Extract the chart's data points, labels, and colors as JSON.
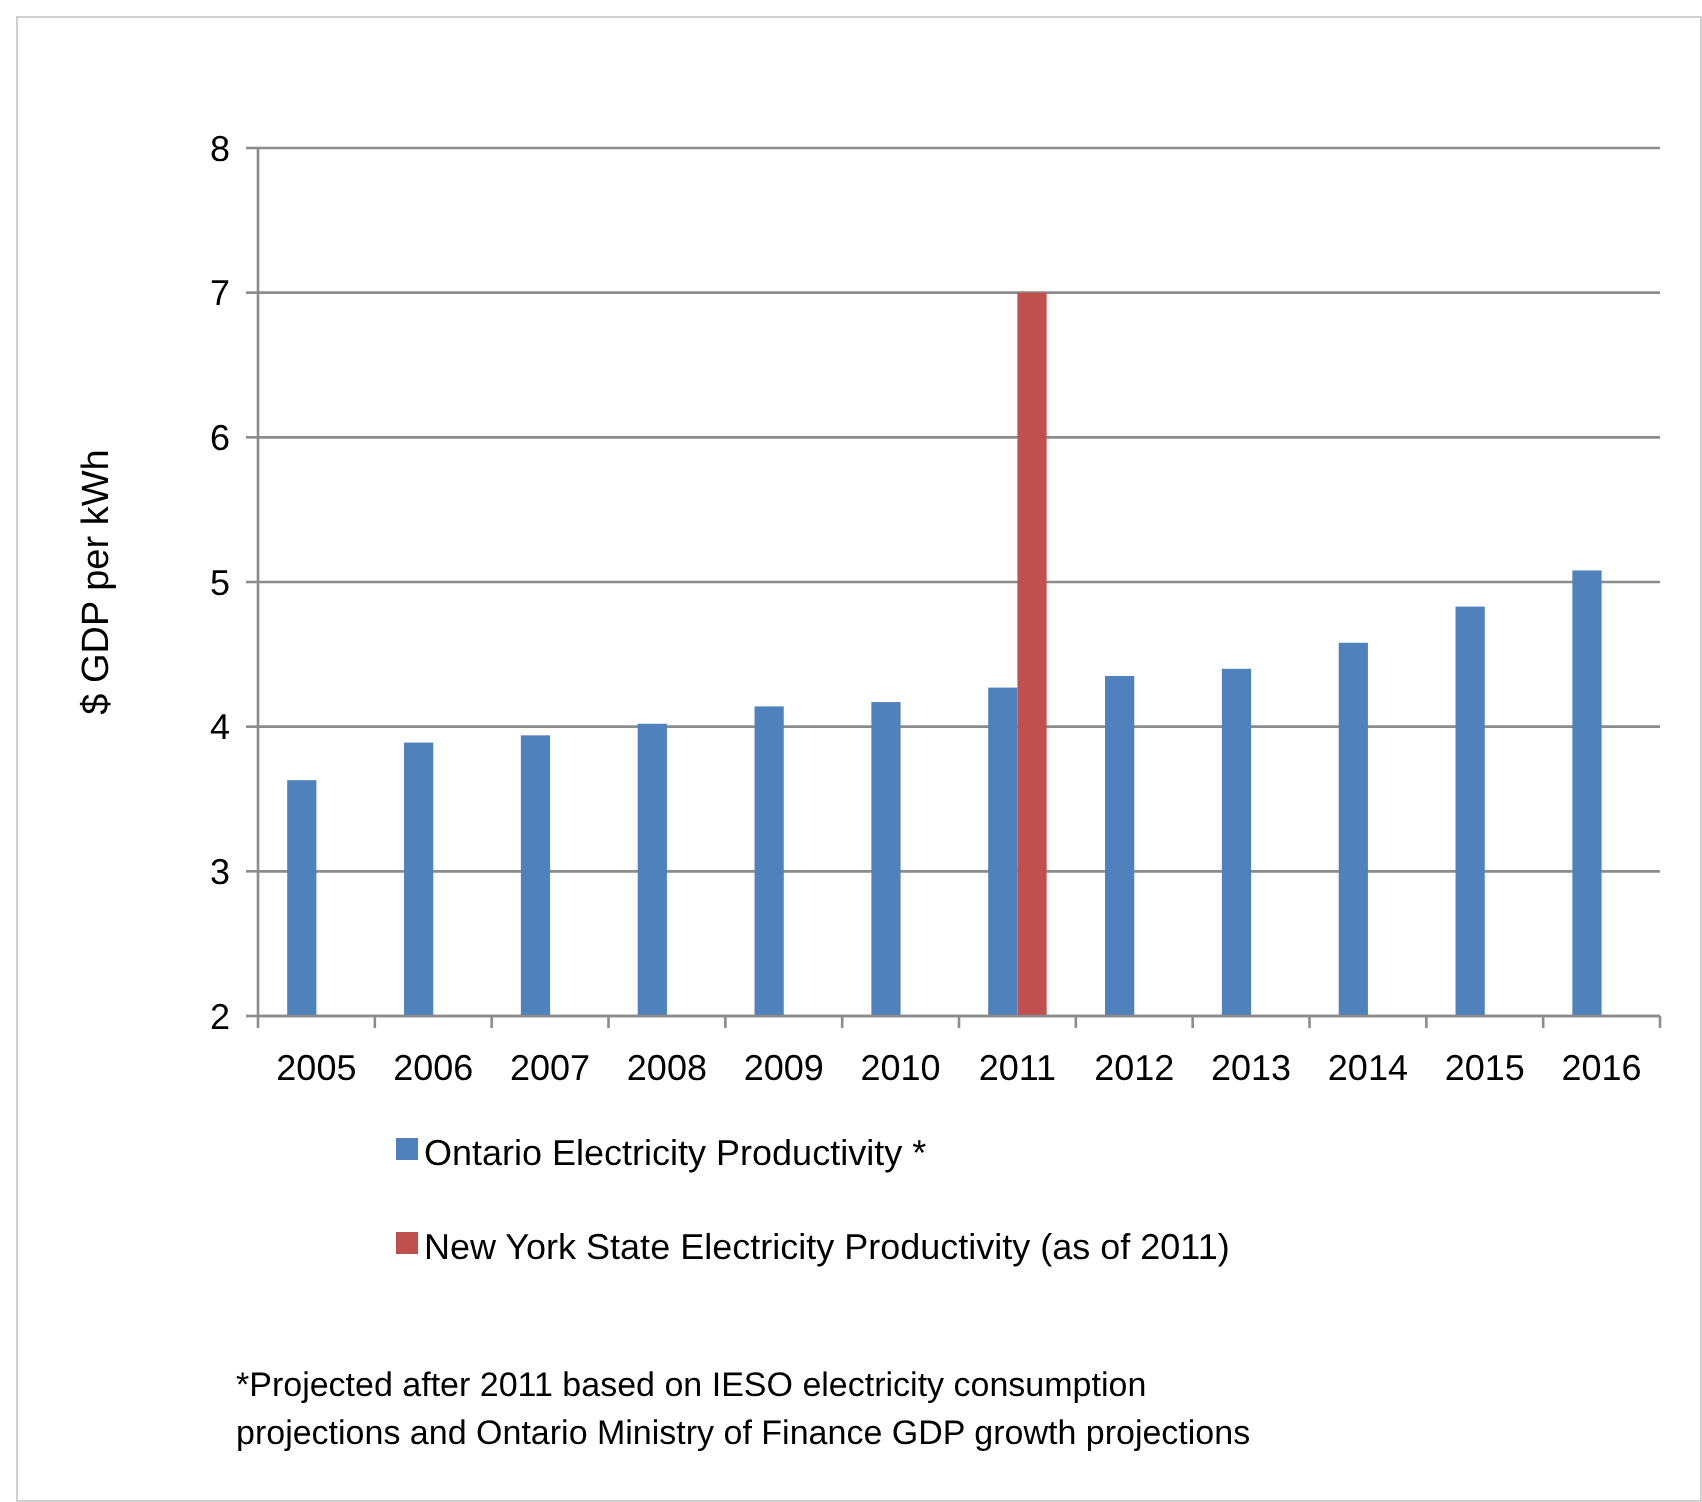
{
  "chart_data": {
    "type": "bar",
    "ylabel": "$ GDP per kWh",
    "categories": [
      "2005",
      "2006",
      "2007",
      "2008",
      "2009",
      "2010",
      "2011",
      "2012",
      "2013",
      "2014",
      "2015",
      "2016"
    ],
    "series": [
      {
        "name": "Ontario Electricity Productivity *",
        "color": "#4f81bd",
        "values": [
          3.63,
          3.89,
          3.94,
          4.02,
          4.14,
          4.17,
          4.27,
          4.35,
          4.4,
          4.58,
          4.83,
          5.08
        ]
      },
      {
        "name": "New York State Electricity Productivity (as of 2011)",
        "color": "#c0504d",
        "values": [
          null,
          null,
          null,
          null,
          null,
          null,
          7,
          null,
          null,
          null,
          null,
          null
        ]
      }
    ],
    "ylim": [
      2,
      8
    ],
    "yticks": [
      2,
      3,
      4,
      5,
      6,
      7,
      8
    ],
    "grid": "y",
    "legend": "bottom",
    "annotations": [
      "*Projected after 2011 based on IESO electricity consumption projections and Ontario Ministry of Finance GDP growth projections"
    ]
  }
}
